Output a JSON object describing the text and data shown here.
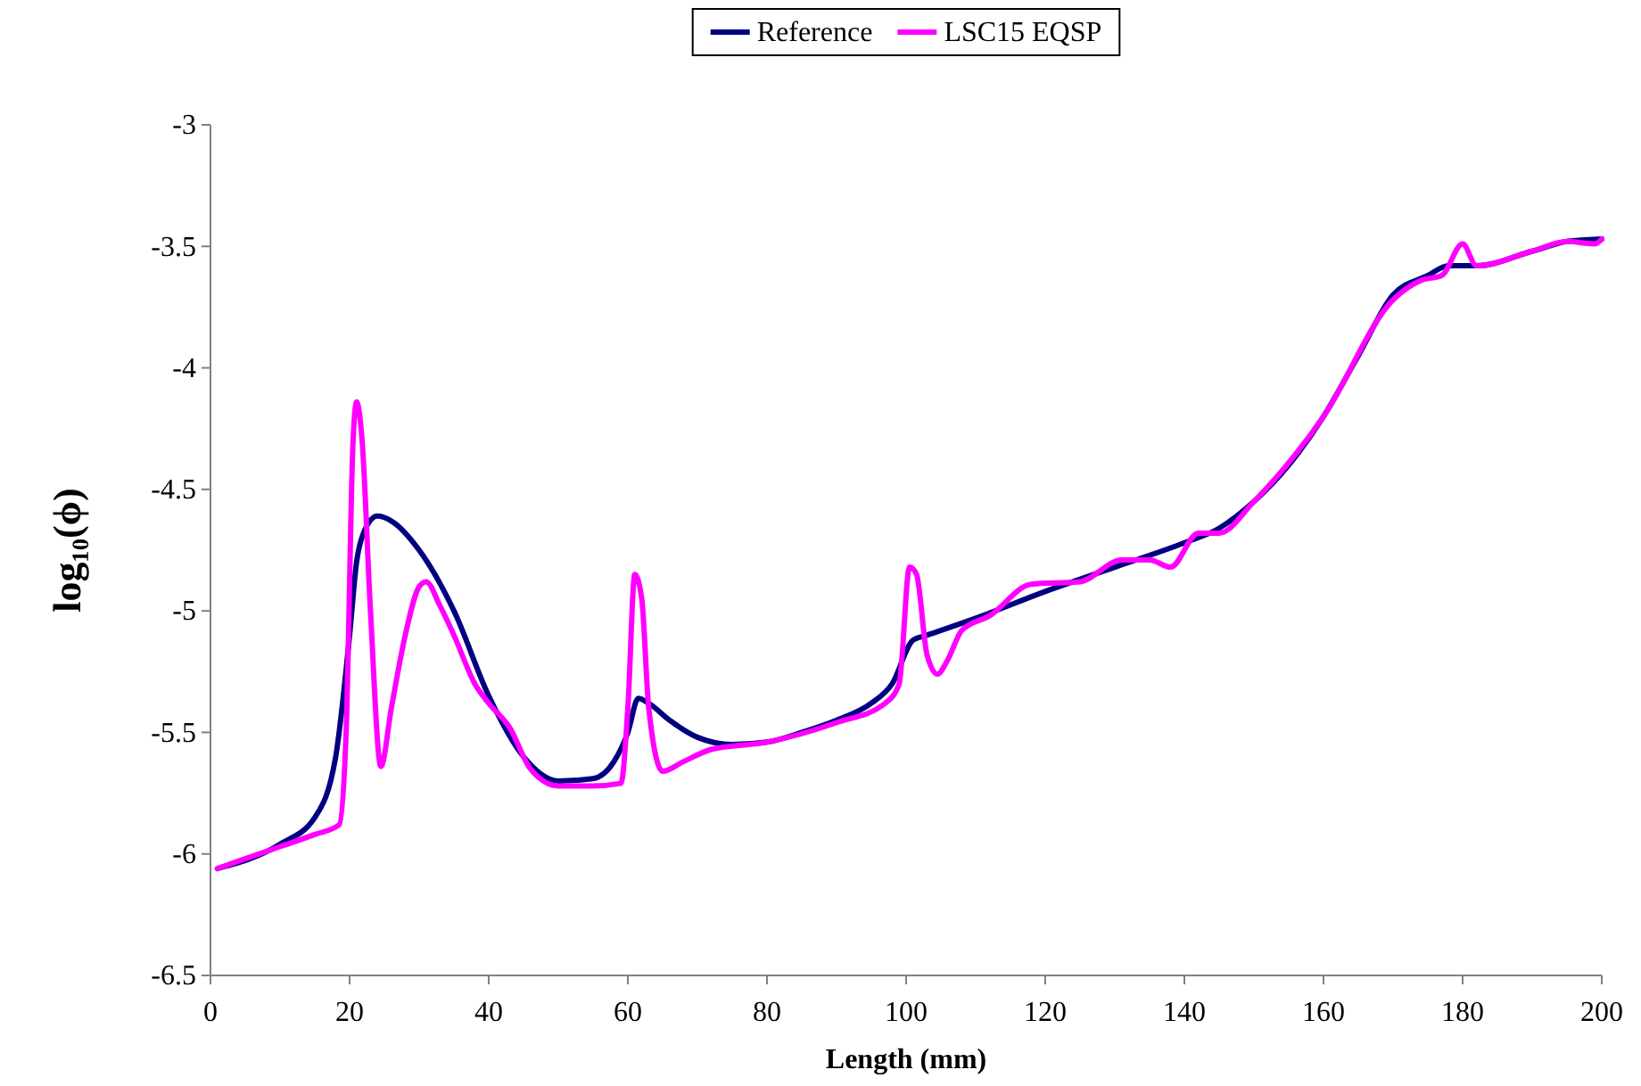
{
  "chart_data": {
    "type": "line",
    "xlabel": "Length (mm)",
    "ylabel": "log₁₀(ϕ)",
    "xlim": [
      0,
      200
    ],
    "xticks": [
      0,
      20,
      40,
      60,
      80,
      100,
      120,
      140,
      160,
      180,
      200
    ],
    "ylim": [
      -6.5,
      -3
    ],
    "yticks": [
      -6.5,
      -6,
      -5.5,
      -5,
      -4.5,
      -4,
      -3.5,
      -3
    ],
    "grid": false,
    "legend": "top",
    "marker": "none",
    "line_style": "solid",
    "series": [
      {
        "name": "Reference",
        "color": "#000080",
        "x": [
          1,
          10,
          15,
          18,
          20,
          21,
          22,
          24,
          26,
          30,
          35,
          40,
          45,
          50,
          55,
          58,
          60,
          61.5,
          63,
          66,
          70,
          75,
          80,
          85,
          90,
          95,
          98,
          101,
          103,
          110,
          120,
          130,
          140,
          145,
          150,
          155,
          160,
          165,
          170,
          175,
          178,
          182,
          190,
          195,
          200
        ],
        "values": [
          -6.06,
          -5.96,
          -5.85,
          -5.6,
          -5.1,
          -4.8,
          -4.68,
          -4.61,
          -4.63,
          -4.75,
          -5.0,
          -5.35,
          -5.6,
          -5.7,
          -5.69,
          -5.62,
          -5.5,
          -5.36,
          -5.38,
          -5.45,
          -5.52,
          -5.55,
          -5.54,
          -5.5,
          -5.45,
          -5.38,
          -5.3,
          -5.12,
          -5.1,
          -5.03,
          -4.92,
          -4.82,
          -4.72,
          -4.66,
          -4.55,
          -4.4,
          -4.2,
          -3.95,
          -3.7,
          -3.62,
          -3.58,
          -3.58,
          -3.52,
          -3.48,
          -3.47
        ]
      },
      {
        "name": "LSC15 EQSP",
        "color": "#ff00ff",
        "x": [
          1,
          10,
          15,
          18.5,
          19.5,
          20.5,
          21,
          21.8,
          23,
          24.5,
          26,
          28,
          30,
          31,
          33,
          35,
          38,
          40,
          43,
          46,
          50,
          55,
          59,
          60,
          61,
          62,
          63,
          65,
          68,
          72,
          80,
          90,
          97,
          99,
          100.5,
          101.5,
          103,
          104.5,
          106,
          108,
          112,
          118,
          125,
          131,
          135,
          138,
          142,
          145,
          150,
          160,
          170,
          174,
          177,
          180,
          182,
          190,
          195,
          199,
          200
        ],
        "values": [
          -6.06,
          -5.97,
          -5.92,
          -5.88,
          -5.5,
          -4.3,
          -4.14,
          -4.3,
          -5.0,
          -5.64,
          -5.4,
          -5.1,
          -4.9,
          -4.88,
          -4.98,
          -5.1,
          -5.3,
          -5.38,
          -5.48,
          -5.65,
          -5.72,
          -5.72,
          -5.71,
          -5.4,
          -4.85,
          -4.95,
          -5.4,
          -5.66,
          -5.62,
          -5.57,
          -5.54,
          -5.46,
          -5.38,
          -5.3,
          -4.82,
          -4.85,
          -5.18,
          -5.26,
          -5.2,
          -5.08,
          -5.02,
          -4.89,
          -4.88,
          -4.79,
          -4.79,
          -4.82,
          -4.68,
          -4.68,
          -4.55,
          -4.2,
          -3.72,
          -3.64,
          -3.62,
          -3.49,
          -3.58,
          -3.52,
          -3.48,
          -3.49,
          -3.47
        ]
      }
    ]
  }
}
